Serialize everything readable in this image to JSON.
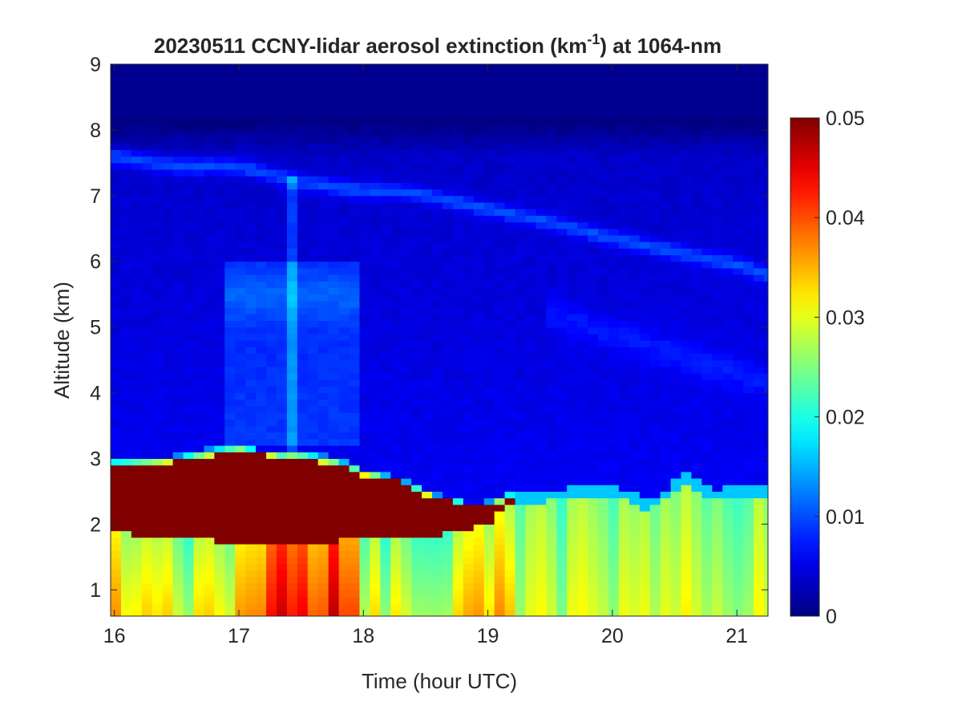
{
  "chart_data": {
    "type": "heatmap",
    "title": {
      "prefix": "20230511 CCNY-lidar aerosol extinction (km",
      "superscript": "-1",
      "suffix": ") at 1064-nm"
    },
    "xlabel": "Time (hour UTC)",
    "ylabel": "Altitude (km)",
    "xlim": [
      15.97,
      21.25
    ],
    "ylim": [
      0.6,
      9
    ],
    "xticks": [
      16,
      17,
      18,
      19,
      20,
      21
    ],
    "xtick_labels": [
      "16",
      "17",
      "18",
      "19",
      "20",
      "21"
    ],
    "yticks": [
      1,
      2,
      3,
      4,
      5,
      6,
      7,
      8,
      9
    ],
    "ytick_labels": [
      "1",
      "2",
      "3",
      "4",
      "5",
      "6",
      "7",
      "8",
      "9"
    ],
    "colorbar": {
      "min": 0,
      "max": 0.05,
      "ticks": [
        0,
        0.01,
        0.02,
        0.03,
        0.04,
        0.05
      ],
      "tick_labels": [
        "0",
        "0.01",
        "0.02",
        "0.03",
        "0.04",
        "0.05"
      ],
      "colormap": "jet"
    },
    "time_step_hours": 0.0833,
    "altitude_step_km": 0.1,
    "features": {
      "aerosol_layer_top_km": [
        [
          16.0,
          3.0
        ],
        [
          16.5,
          3.05
        ],
        [
          17.0,
          3.25
        ],
        [
          17.3,
          3.05
        ],
        [
          17.45,
          3.15
        ],
        [
          17.8,
          3.0
        ],
        [
          18.0,
          2.85
        ],
        [
          18.3,
          2.7
        ],
        [
          18.5,
          2.5
        ],
        [
          18.8,
          2.35
        ],
        [
          19.0,
          2.35
        ],
        [
          19.2,
          2.5
        ],
        [
          19.4,
          2.45
        ],
        [
          19.6,
          2.55
        ],
        [
          20.0,
          2.6
        ],
        [
          20.3,
          2.35
        ],
        [
          20.6,
          2.8
        ],
        [
          20.8,
          2.5
        ],
        [
          21.0,
          2.6
        ],
        [
          21.25,
          2.6
        ]
      ],
      "dense_layer_bottom_km": [
        [
          16.0,
          1.9
        ],
        [
          16.3,
          1.8
        ],
        [
          16.6,
          1.85
        ],
        [
          17.0,
          1.65
        ],
        [
          17.4,
          1.7
        ],
        [
          17.8,
          1.75
        ],
        [
          18.0,
          1.8
        ],
        [
          18.3,
          1.8
        ],
        [
          18.6,
          1.85
        ],
        [
          19.0,
          2.0
        ],
        [
          19.2,
          2.35
        ]
      ],
      "dense_layer_top_km": [
        [
          16.0,
          2.85
        ],
        [
          16.5,
          2.95
        ],
        [
          17.0,
          3.1
        ],
        [
          17.45,
          3.0
        ],
        [
          17.8,
          2.9
        ],
        [
          18.0,
          2.75
        ],
        [
          18.3,
          2.65
        ],
        [
          18.5,
          2.45
        ],
        [
          18.8,
          2.3
        ],
        [
          19.0,
          2.25
        ],
        [
          19.2,
          2.4
        ]
      ],
      "upper_thin_layer_km": [
        [
          16.0,
          7.6
        ],
        [
          16.5,
          7.45
        ],
        [
          17.0,
          7.45
        ],
        [
          17.4,
          7.25
        ],
        [
          17.9,
          7.1
        ],
        [
          18.4,
          7.05
        ],
        [
          19.0,
          6.8
        ],
        [
          19.5,
          6.6
        ],
        [
          20.0,
          6.35
        ],
        [
          20.5,
          6.15
        ],
        [
          21.0,
          5.95
        ],
        [
          21.25,
          5.8
        ]
      ]
    }
  }
}
